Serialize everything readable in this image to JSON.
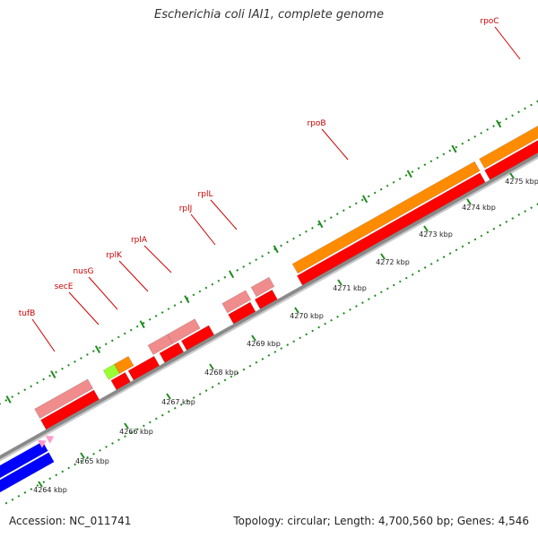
{
  "title": "Escherichia coli IAI1, complete genome",
  "footer": {
    "accession": "Accession: NC_011741",
    "summary": "Topology: circular; Length: 4,700,560 bp; Genes: 4,546"
  },
  "colors": {
    "backbone": "#8a8a8a",
    "cds": "#ff0000",
    "cds_light": "#f08c8c",
    "orange": "#ff8c00",
    "green": "#9aff32",
    "blue": "#0000ff",
    "pink": "#ff99cc",
    "tick": "#1e8c1e",
    "label": "#cc0000"
  },
  "gene_labels": [
    "rpoC",
    "rpoB",
    "rplL",
    "rplJ",
    "rplA",
    "rplK",
    "nusG",
    "secE",
    "tufB"
  ],
  "kbp_ticks": [
    "4264 kbp",
    "4265 kbp",
    "4266 kbp",
    "4267 kbp",
    "4268 kbp",
    "4269 kbp",
    "4270 kbp",
    "4271 kbp",
    "4272 kbp",
    "4273 kbp",
    "4274 kbp",
    "4275 kbp"
  ]
}
